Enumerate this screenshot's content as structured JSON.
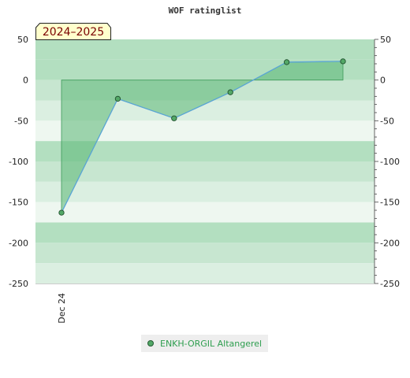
{
  "chart_data": {
    "type": "line",
    "title": "WOF ratinglist",
    "season_badge": "2024–2025",
    "xlabel": "",
    "ylabel": "",
    "ylim": [
      -250,
      50
    ],
    "yticks": [
      50,
      0,
      -50,
      -100,
      -150,
      -200,
      -250
    ],
    "x_tick_labels": [
      "Dec 24"
    ],
    "grid": "horizontal bands",
    "legend_position": "bottom-center",
    "colors": {
      "band_dark": "#b3dfc0",
      "band_mid": "#c7e6d0",
      "band_light": "#dbefe1",
      "band_pale": "#eef7f0",
      "fill": "#5ab775",
      "line": "#5aa5d6",
      "marker": "#53a867"
    },
    "series": [
      {
        "name": "ENKH-ORGIL Altangerel",
        "values": [
          -163,
          -23,
          -47,
          -15,
          22,
          23
        ]
      }
    ]
  }
}
